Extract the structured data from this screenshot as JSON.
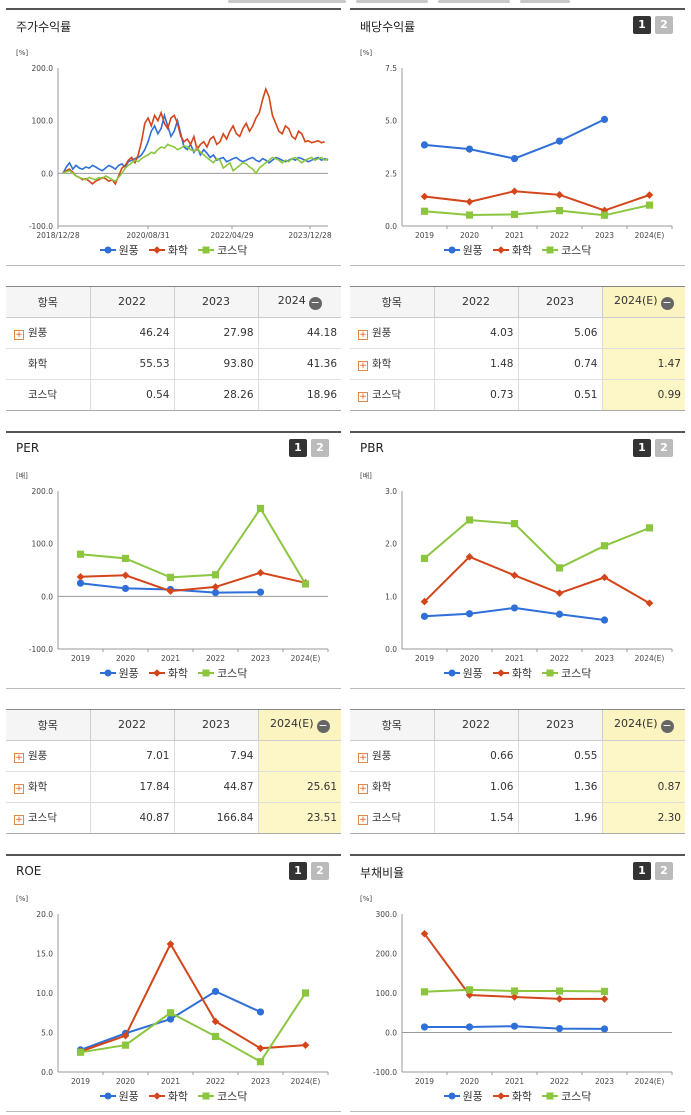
{
  "colors": {
    "wonpoong": "#2e6fd8",
    "hwahak": "#d4451a",
    "kosdaq": "#8cc63f"
  },
  "legend": [
    "원풍",
    "화학",
    "코스닥"
  ],
  "pager": [
    "1",
    "2"
  ],
  "panels": {
    "stock": {
      "title": "주가수익률",
      "unit": "[%]"
    },
    "dividend": {
      "title": "배당수익률",
      "unit": "[%]"
    },
    "per": {
      "title": "PER",
      "unit": "[배]"
    },
    "pbr": {
      "title": "PBR",
      "unit": "[배]"
    },
    "roe": {
      "title": "ROE",
      "unit": "[%]"
    },
    "debt": {
      "title": "부채비율",
      "unit": "[%]"
    }
  },
  "chart_data": [
    {
      "id": "stock",
      "type": "line",
      "title": "주가수익률",
      "yticks": [
        "200.0",
        "100.0",
        "0.0",
        "-100.0"
      ],
      "ylim": [
        -100,
        200
      ],
      "xticks": [
        "2018/12/28",
        "2020/08/31",
        "2022/04/29",
        "2023/12/28"
      ],
      "series": [
        {
          "name": "원풍",
          "values": [
            0,
            12,
            20,
            8,
            15,
            10,
            8,
            12,
            10,
            15,
            12,
            8,
            5,
            10,
            15,
            12,
            8,
            15,
            18,
            12,
            22,
            25,
            28,
            30,
            35,
            45,
            60,
            80,
            90,
            75,
            85,
            110,
            90,
            70,
            80,
            100,
            75,
            50,
            45,
            55,
            40,
            50,
            35,
            45,
            38,
            30,
            35,
            25,
            28,
            30,
            22,
            25,
            28,
            30,
            25,
            22,
            25,
            28,
            30,
            25,
            22,
            28,
            25,
            20,
            25,
            30,
            28,
            25,
            22,
            25,
            28,
            25,
            30,
            28,
            25,
            22,
            25,
            28,
            30,
            25,
            28,
            25
          ]
        },
        {
          "name": "화학",
          "values": [
            0,
            5,
            8,
            2,
            -5,
            -8,
            -12,
            -10,
            -15,
            -20,
            -15,
            -12,
            -8,
            -10,
            -15,
            -12,
            -20,
            -5,
            10,
            15,
            25,
            30,
            20,
            35,
            60,
            95,
            105,
            90,
            110,
            100,
            115,
            95,
            85,
            105,
            110,
            95,
            70,
            60,
            65,
            55,
            70,
            45,
            55,
            60,
            50,
            65,
            70,
            55,
            60,
            75,
            65,
            80,
            90,
            75,
            70,
            85,
            95,
            80,
            90,
            105,
            115,
            140,
            160,
            145,
            110,
            95,
            80,
            75,
            90,
            85,
            70,
            65,
            80,
            75,
            60,
            62,
            58,
            60,
            62,
            58,
            60
          ]
        },
        {
          "name": "코스닥",
          "values": [
            0,
            3,
            5,
            0,
            -5,
            -8,
            -10,
            -12,
            -8,
            -10,
            -12,
            -8,
            -10,
            -5,
            -8,
            -12,
            -15,
            -8,
            0,
            10,
            15,
            20,
            25,
            22,
            28,
            32,
            35,
            40,
            38,
            45,
            50,
            48,
            55,
            52,
            50,
            45,
            48,
            52,
            50,
            45,
            42,
            48,
            40,
            35,
            30,
            25,
            20,
            28,
            25,
            10,
            15,
            20,
            5,
            10,
            15,
            20,
            18,
            12,
            8,
            0,
            10,
            15,
            20,
            25,
            30,
            28,
            25,
            20,
            25,
            22,
            28,
            30,
            25,
            20,
            25,
            28,
            30,
            25,
            28,
            30,
            25,
            28
          ]
        }
      ]
    },
    {
      "id": "dividend",
      "type": "line",
      "title": "배당수익률",
      "categories": [
        "2019",
        "2020",
        "2021",
        "2022",
        "2023",
        "2024(E)"
      ],
      "yticks": [
        "7.5",
        "5.0",
        "2.5",
        "0.0"
      ],
      "ylim": [
        0,
        7.5
      ],
      "series": [
        {
          "name": "원풍",
          "values": [
            3.85,
            3.65,
            3.2,
            4.03,
            5.06,
            null
          ]
        },
        {
          "name": "화학",
          "values": [
            1.4,
            1.15,
            1.65,
            1.48,
            0.74,
            1.47
          ]
        },
        {
          "name": "코스닥",
          "values": [
            0.7,
            0.52,
            0.55,
            0.73,
            0.51,
            0.99
          ]
        }
      ]
    },
    {
      "id": "per",
      "type": "line",
      "title": "PER",
      "categories": [
        "2019",
        "2020",
        "2021",
        "2022",
        "2023",
        "2024(E)"
      ],
      "yticks": [
        "200.0",
        "100.0",
        "0.0",
        "-100.0"
      ],
      "ylim": [
        -100,
        200
      ],
      "series": [
        {
          "name": "원풍",
          "values": [
            25,
            15,
            13,
            7.01,
            7.94,
            null
          ]
        },
        {
          "name": "화학",
          "values": [
            37,
            40,
            10,
            17.84,
            44.87,
            25.61
          ]
        },
        {
          "name": "코스닥",
          "values": [
            80,
            72,
            36,
            40.87,
            166.84,
            23.51
          ]
        }
      ]
    },
    {
      "id": "pbr",
      "type": "line",
      "title": "PBR",
      "categories": [
        "2019",
        "2020",
        "2021",
        "2022",
        "2023",
        "2024(E)"
      ],
      "yticks": [
        "3.0",
        "2.0",
        "1.0",
        "0.0"
      ],
      "ylim": [
        0,
        3
      ],
      "series": [
        {
          "name": "원풍",
          "values": [
            0.62,
            0.67,
            0.78,
            0.66,
            0.55,
            null
          ]
        },
        {
          "name": "화학",
          "values": [
            0.9,
            1.75,
            1.4,
            1.06,
            1.36,
            0.87
          ]
        },
        {
          "name": "코스닥",
          "values": [
            1.72,
            2.45,
            2.38,
            1.54,
            1.96,
            2.3
          ]
        }
      ]
    },
    {
      "id": "roe",
      "type": "line",
      "title": "ROE",
      "categories": [
        "2019",
        "2020",
        "2021",
        "2022",
        "2023",
        "2024(E)"
      ],
      "yticks": [
        "20.0",
        "15.0",
        "10.0",
        "5.0",
        "0.0"
      ],
      "ylim": [
        0,
        20
      ],
      "series": [
        {
          "name": "원풍",
          "values": [
            2.8,
            4.9,
            6.7,
            10.2,
            7.6,
            null
          ]
        },
        {
          "name": "화학",
          "values": [
            2.6,
            4.6,
            16.2,
            6.4,
            3.0,
            3.4
          ]
        },
        {
          "name": "코스닥",
          "values": [
            2.5,
            3.4,
            7.5,
            4.5,
            1.3,
            10.0
          ]
        }
      ]
    },
    {
      "id": "debt",
      "type": "line",
      "title": "부채비율",
      "categories": [
        "2019",
        "2020",
        "2021",
        "2022",
        "2023",
        "2024(E)"
      ],
      "yticks": [
        "300.0",
        "200.0",
        "100.0",
        "0.0",
        "-100.0"
      ],
      "ylim": [
        -100,
        300
      ],
      "series": [
        {
          "name": "원풍",
          "values": [
            14,
            14,
            16,
            10,
            9,
            null
          ]
        },
        {
          "name": "화학",
          "values": [
            250,
            95,
            90,
            85,
            85,
            null
          ]
        },
        {
          "name": "코스닥",
          "values": [
            103,
            108,
            105,
            105,
            104,
            null
          ]
        }
      ]
    }
  ],
  "tables": {
    "stock": {
      "headers": [
        "항목",
        "2022",
        "2023",
        "2024"
      ],
      "rows": [
        {
          "name": "원풍",
          "plus": true,
          "v": [
            "46.24",
            "27.98",
            "44.18"
          ]
        },
        {
          "name": "화학",
          "plus": false,
          "v": [
            "55.53",
            "93.80",
            "41.36"
          ]
        },
        {
          "name": "코스닥",
          "plus": false,
          "v": [
            "0.54",
            "28.26",
            "18.96"
          ]
        }
      ]
    },
    "dividend": {
      "headers": [
        "항목",
        "2022",
        "2023",
        "2024(E)"
      ],
      "rows": [
        {
          "name": "원풍",
          "plus": true,
          "v": [
            "4.03",
            "5.06",
            ""
          ]
        },
        {
          "name": "화학",
          "plus": true,
          "v": [
            "1.48",
            "0.74",
            "1.47"
          ]
        },
        {
          "name": "코스닥",
          "plus": true,
          "v": [
            "0.73",
            "0.51",
            "0.99"
          ]
        }
      ]
    },
    "per": {
      "headers": [
        "항목",
        "2022",
        "2023",
        "2024(E)"
      ],
      "rows": [
        {
          "name": "원풍",
          "plus": true,
          "v": [
            "7.01",
            "7.94",
            ""
          ]
        },
        {
          "name": "화학",
          "plus": true,
          "v": [
            "17.84",
            "44.87",
            "25.61"
          ]
        },
        {
          "name": "코스닥",
          "plus": true,
          "v": [
            "40.87",
            "166.84",
            "23.51"
          ]
        }
      ]
    },
    "pbr": {
      "headers": [
        "항목",
        "2022",
        "2023",
        "2024(E)"
      ],
      "rows": [
        {
          "name": "원풍",
          "plus": true,
          "v": [
            "0.66",
            "0.55",
            ""
          ]
        },
        {
          "name": "화학",
          "plus": true,
          "v": [
            "1.06",
            "1.36",
            "0.87"
          ]
        },
        {
          "name": "코스닥",
          "plus": true,
          "v": [
            "1.54",
            "1.96",
            "2.30"
          ]
        }
      ]
    }
  }
}
